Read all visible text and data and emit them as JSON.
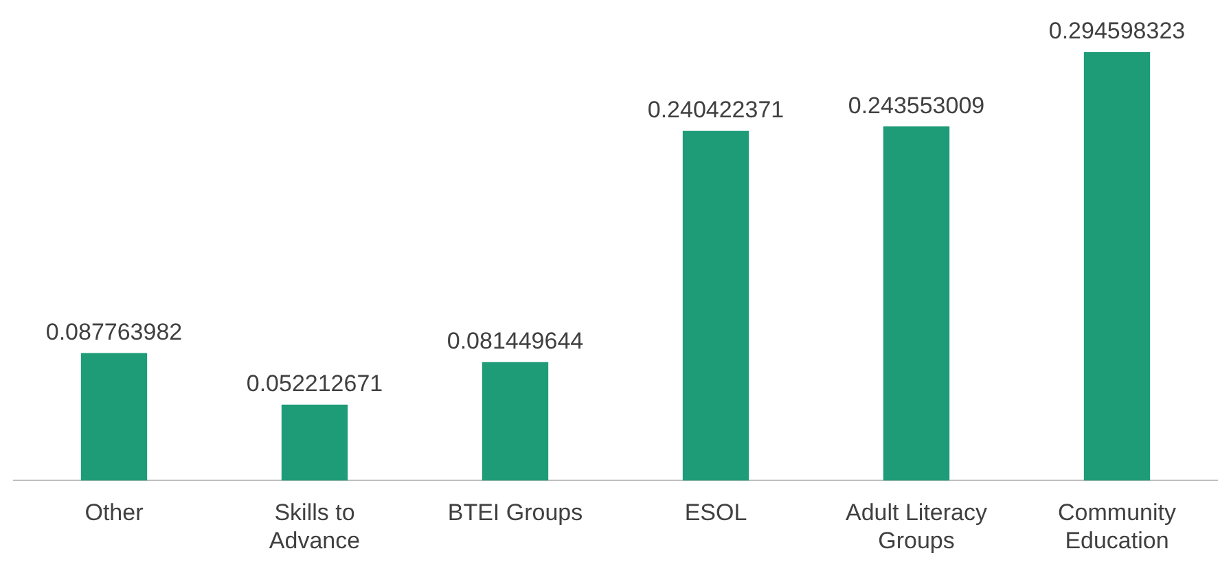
{
  "chart_data": {
    "type": "bar",
    "categories": [
      "Other",
      "Skills to Advance",
      "BTEI Groups",
      "ESOL",
      "Adult Literacy Groups",
      "Community Education"
    ],
    "values": [
      0.087763982,
      0.052212671,
      0.081449644,
      0.240422371,
      0.243553009,
      0.294598323
    ],
    "color": "#1e9c78",
    "data_labels": true,
    "grid": false,
    "legend": false
  }
}
